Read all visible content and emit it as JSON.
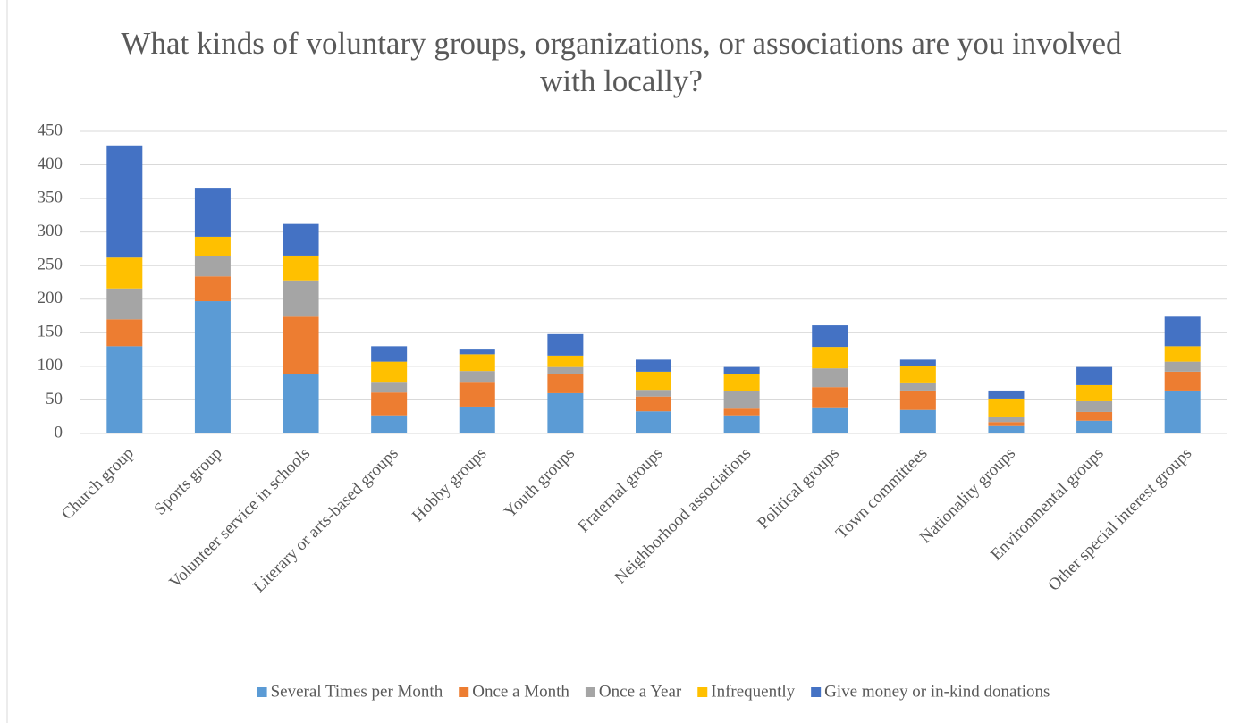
{
  "chart_data": {
    "type": "stacked_bar",
    "title": "What kinds of voluntary groups, organizations, or associations are you involved with locally?",
    "categories": [
      "Church group",
      "Sports group",
      "Volunteer service in schools",
      "Literary or arts-based groups",
      "Hobby groups",
      "Youth groups",
      "Fraternal groups",
      "Neighborhood associations",
      "Political groups",
      "Town committees",
      "Nationality groups",
      "Environmental groups",
      "Other special interest groups"
    ],
    "series": [
      {
        "name": "Several Times per Month",
        "color": "#5b9bd5",
        "values": [
          130,
          197,
          89,
          27,
          40,
          60,
          33,
          27,
          39,
          35,
          11,
          19,
          64
        ]
      },
      {
        "name": "Once a Month",
        "color": "#ed7d31",
        "values": [
          40,
          37,
          85,
          34,
          37,
          29,
          22,
          10,
          30,
          29,
          6,
          13,
          28
        ]
      },
      {
        "name": "Once a Year",
        "color": "#a5a5a5",
        "values": [
          46,
          30,
          54,
          16,
          16,
          10,
          10,
          26,
          28,
          12,
          7,
          16,
          15
        ]
      },
      {
        "name": "Infrequently",
        "color": "#ffc000",
        "values": [
          46,
          29,
          37,
          30,
          25,
          17,
          27,
          26,
          32,
          25,
          28,
          24,
          23
        ]
      },
      {
        "name": "Give money or in-kind donations",
        "color": "#4472c4",
        "values": [
          167,
          73,
          47,
          23,
          7,
          32,
          18,
          10,
          32,
          9,
          12,
          27,
          44
        ]
      }
    ],
    "ylim": [
      0,
      450
    ],
    "yticks": [
      0,
      50,
      100,
      150,
      200,
      250,
      300,
      350,
      400,
      450
    ],
    "grid": true,
    "legend": "bottom"
  }
}
